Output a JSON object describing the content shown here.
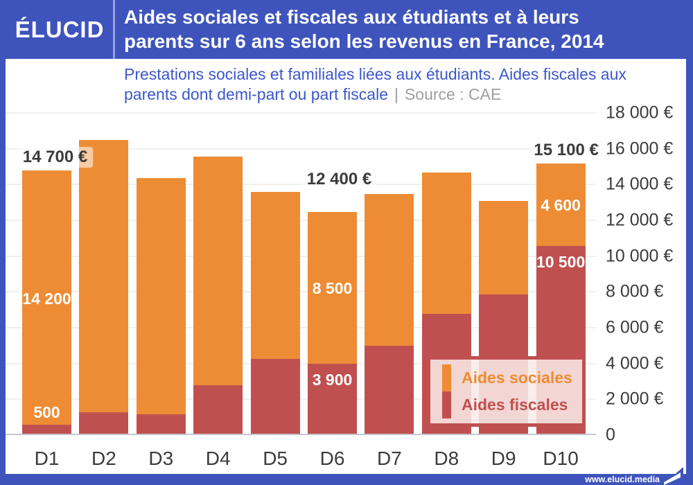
{
  "brand": {
    "logo": "ÉLUCID",
    "website": "www.elucid.media"
  },
  "header": {
    "title_line1": "Aides sociales et fiscales aux étudiants et à leurs",
    "title_line2": "parents sur 6 ans selon les revenus en France, 2014"
  },
  "subtitle": {
    "line1": "Prestations sociales et familiales liées aux étudiants. Aides fiscales aux",
    "line2": "parents dont demi-part ou part fiscale",
    "separator": "|",
    "source": "Source : CAE"
  },
  "legend": {
    "items": [
      {
        "label": "Aides sociales",
        "color": "#ED8C34"
      },
      {
        "label": "Aides fiscales",
        "color": "#C05050"
      }
    ]
  },
  "colors": {
    "header_blue": "#3E54BC",
    "subtitle_blue": "#3C57C9",
    "orange": "#ED8C34",
    "red": "#C05050",
    "dark_text": "#3B3B3B",
    "source_gray": "#9E9E9E"
  },
  "chart_data": {
    "type": "bar",
    "stacked": true,
    "title": "Aides sociales et fiscales aux étudiants et à leurs parents sur 6 ans selon les revenus en France, 2014",
    "categories": [
      "D1",
      "D2",
      "D3",
      "D4",
      "D5",
      "D6",
      "D7",
      "D8",
      "D9",
      "D10"
    ],
    "series": [
      {
        "name": "Aides fiscales",
        "color": "#C05050",
        "values": [
          500,
          1200,
          1100,
          2700,
          4200,
          3900,
          4900,
          6700,
          7800,
          10500
        ]
      },
      {
        "name": "Aides sociales",
        "color": "#ED8C34",
        "values": [
          14200,
          15200,
          13200,
          12800,
          9300,
          8500,
          8500,
          7900,
          5200,
          4600
        ]
      }
    ],
    "totals": [
      14700,
      16400,
      14300,
      15500,
      13500,
      12400,
      13400,
      14600,
      13000,
      15100
    ],
    "ylim": [
      0,
      18000
    ],
    "ytick_step": 2000,
    "ytick_labels": [
      "0",
      "2 000 €",
      "4 000 €",
      "6 000 €",
      "8 000 €",
      "10 000 €",
      "12 000 €",
      "14 000 €",
      "16 000 €",
      "18 000 €"
    ],
    "grid": true,
    "legend_position": "inside-bottom-right",
    "total_labels": [
      {
        "category": "D1",
        "text": "14 700 €",
        "gap": 6,
        "dx": 12
      },
      {
        "category": "D6",
        "text": "12 400 €",
        "gap": 34,
        "dx": 10
      },
      {
        "category": "D10",
        "text": "15 100 €",
        "gap": 6,
        "dx": 8
      }
    ],
    "segment_labels": [
      {
        "category": "D1",
        "series": "social",
        "text": "14 200",
        "placement": "center"
      },
      {
        "category": "D1",
        "series": "fiscal",
        "text": "500",
        "placement": "above"
      },
      {
        "category": "D6",
        "series": "social",
        "text": "8 500",
        "placement": "center"
      },
      {
        "category": "D6",
        "series": "fiscal",
        "text": "3 900",
        "placement": "top"
      },
      {
        "category": "D10",
        "series": "social",
        "text": "4 600",
        "placement": "center"
      },
      {
        "category": "D10",
        "series": "fiscal",
        "text": "10 500",
        "placement": "top"
      }
    ]
  }
}
